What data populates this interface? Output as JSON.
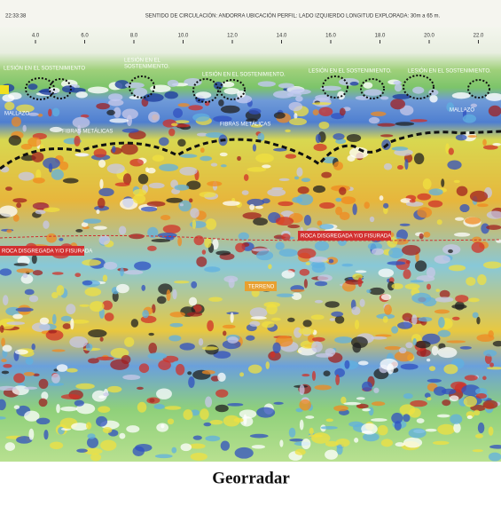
{
  "header": {
    "time": "22:33:38",
    "info": "SENTIDO DE CIRCULACIÓN: ANDORRA  UBICACIÓN PERFIL: LADO IZQUIERDO  LONGITUD EXPLORADA: 30m a 65 m."
  },
  "scale": [
    "4.0",
    "6.0",
    "8.0",
    "10.0",
    "12.0",
    "14.0",
    "16.0",
    "18.0",
    "20.0",
    "22.0"
  ],
  "annotations": [
    "LESIÓN EN EL SOSTENIMIENTO",
    "LESIÓN EN EL",
    "SOSTENIMIENTO.",
    "LESIÓN EN EL SOSTENIMIENTO.",
    "LESIÓN EN EL SOSTENIMIENTO.",
    "LESIÓN EN EL SOSTENIMIENTO.",
    "MALLAZO",
    "MALLAZO",
    "FIBRAS METÁLICAS",
    "FIBRAS METÁLICAS",
    "ROCA DISGREGADA Y/O FISURADA",
    "ROCA DISGREGADA Y/O FISURADA",
    "TERRENO"
  ],
  "caption": "Georradar"
}
